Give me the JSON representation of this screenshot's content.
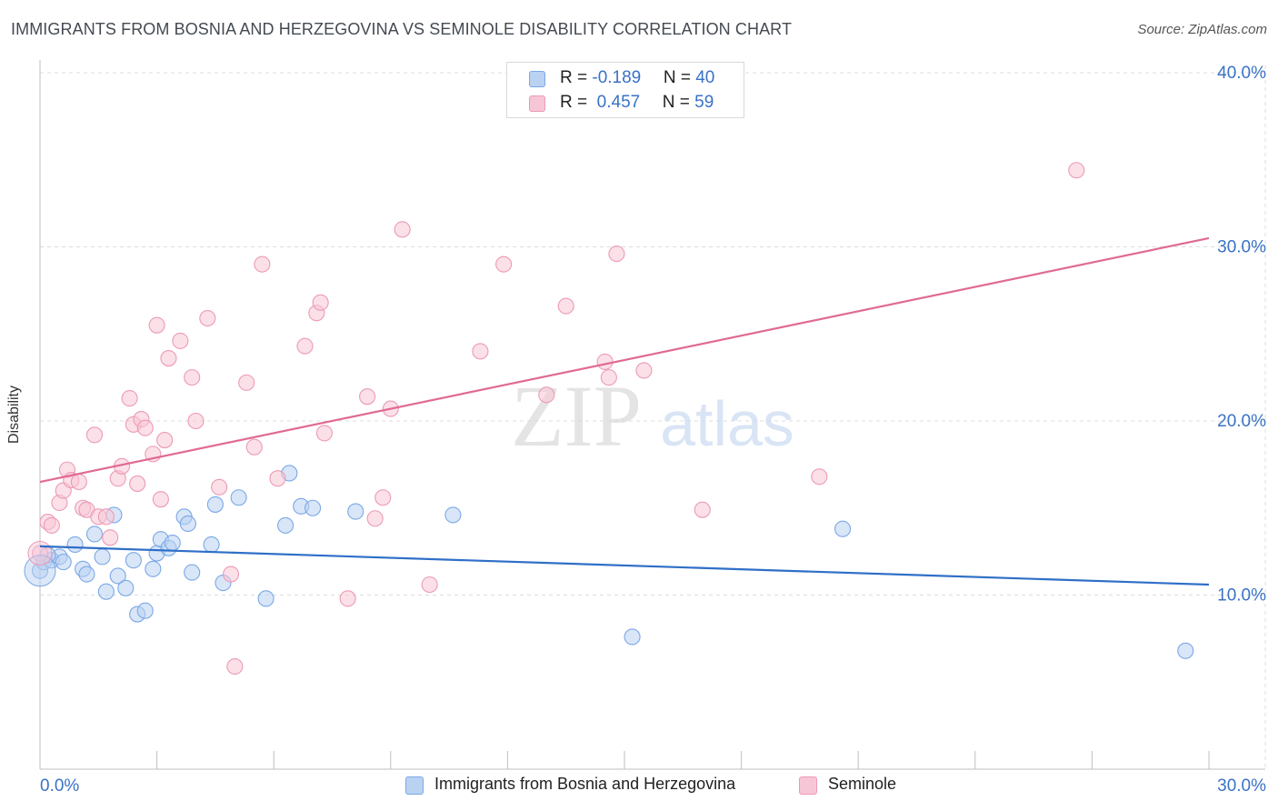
{
  "title": "IMMIGRANTS FROM BOSNIA AND HERZEGOVINA VS SEMINOLE DISABILITY CORRELATION CHART",
  "source": "Source: ZipAtlas.com",
  "watermark": {
    "zip": "ZIP",
    "atlas": "atlas"
  },
  "legend": {
    "rows": [
      {
        "r_label": "R = ",
        "r_value": "-0.189",
        "n_label": "N = ",
        "n_value": "40"
      },
      {
        "r_label": "R = ",
        "r_value": " 0.457",
        "n_label": "N = ",
        "n_value": "59"
      }
    ]
  },
  "chart_data": {
    "type": "scatter",
    "title": "IMMIGRANTS FROM BOSNIA AND HERZEGOVINA VS SEMINOLE DISABILITY CORRELATION CHART",
    "xlabel": "",
    "ylabel": "Disability",
    "xlim": [
      0,
      30
    ],
    "ylim": [
      0,
      40
    ],
    "x_tick_labels": [
      "0.0%",
      "30.0%"
    ],
    "y_tick_labels": [
      "10.0%",
      "20.0%",
      "30.0%",
      "40.0%"
    ],
    "y_ticks": [
      10,
      20,
      30,
      40
    ],
    "grid": true,
    "legend_position": "top-center",
    "series": [
      {
        "name": "Immigrants from Bosnia and Herzegovina",
        "color": "#7aa8e6",
        "fill": "#b9d2f2",
        "line_color": "#2f6fc7",
        "r": -0.189,
        "n": 40,
        "trend": [
          [
            0,
            12.8
          ],
          [
            30,
            10.6
          ]
        ],
        "points": [
          [
            0.0,
            11.4
          ],
          [
            0.1,
            11.9
          ],
          [
            0.3,
            12.0
          ],
          [
            0.5,
            12.2
          ],
          [
            0.6,
            11.9
          ],
          [
            0.9,
            12.9
          ],
          [
            1.1,
            11.5
          ],
          [
            1.2,
            11.2
          ],
          [
            1.4,
            13.5
          ],
          [
            1.6,
            12.2
          ],
          [
            1.7,
            10.2
          ],
          [
            1.9,
            14.6
          ],
          [
            2.0,
            11.1
          ],
          [
            2.2,
            10.4
          ],
          [
            2.4,
            12.0
          ],
          [
            2.5,
            8.9
          ],
          [
            2.7,
            9.1
          ],
          [
            2.9,
            11.5
          ],
          [
            3.0,
            12.4
          ],
          [
            3.1,
            13.2
          ],
          [
            3.3,
            12.7
          ],
          [
            3.4,
            13.0
          ],
          [
            3.7,
            14.5
          ],
          [
            3.8,
            14.1
          ],
          [
            3.9,
            11.3
          ],
          [
            4.4,
            12.9
          ],
          [
            4.5,
            15.2
          ],
          [
            4.7,
            10.7
          ],
          [
            5.1,
            15.6
          ],
          [
            5.8,
            9.8
          ],
          [
            6.3,
            14.0
          ],
          [
            6.4,
            17.0
          ],
          [
            6.7,
            15.1
          ],
          [
            7.0,
            15.0
          ],
          [
            8.1,
            14.8
          ],
          [
            10.6,
            14.6
          ],
          [
            15.2,
            7.6
          ],
          [
            20.6,
            13.8
          ],
          [
            29.4,
            6.8
          ],
          [
            0.2,
            12.3
          ]
        ]
      },
      {
        "name": "Seminole",
        "color": "#ec9ab5",
        "fill": "#f7c6d6",
        "line_color": "#e06a93",
        "r": 0.457,
        "n": 59,
        "trend": [
          [
            0,
            16.5
          ],
          [
            30,
            30.5
          ]
        ],
        "points": [
          [
            0.0,
            12.4
          ],
          [
            0.2,
            14.2
          ],
          [
            0.3,
            14.0
          ],
          [
            0.5,
            15.3
          ],
          [
            0.6,
            16.0
          ],
          [
            0.7,
            17.2
          ],
          [
            0.8,
            16.6
          ],
          [
            1.0,
            16.5
          ],
          [
            1.1,
            15.0
          ],
          [
            1.2,
            14.9
          ],
          [
            1.4,
            19.2
          ],
          [
            1.5,
            14.5
          ],
          [
            1.7,
            14.5
          ],
          [
            1.8,
            13.3
          ],
          [
            2.0,
            16.7
          ],
          [
            2.1,
            17.4
          ],
          [
            2.3,
            21.3
          ],
          [
            2.4,
            19.8
          ],
          [
            2.5,
            16.4
          ],
          [
            2.6,
            20.1
          ],
          [
            2.7,
            19.6
          ],
          [
            2.9,
            18.1
          ],
          [
            3.0,
            25.5
          ],
          [
            3.1,
            15.5
          ],
          [
            3.2,
            18.9
          ],
          [
            3.3,
            23.6
          ],
          [
            3.6,
            24.6
          ],
          [
            3.9,
            22.5
          ],
          [
            4.0,
            20.0
          ],
          [
            4.3,
            25.9
          ],
          [
            4.6,
            16.2
          ],
          [
            4.9,
            11.2
          ],
          [
            5.0,
            5.9
          ],
          [
            5.3,
            22.2
          ],
          [
            5.5,
            18.5
          ],
          [
            5.7,
            29.0
          ],
          [
            6.1,
            16.7
          ],
          [
            6.8,
            24.3
          ],
          [
            7.1,
            26.2
          ],
          [
            7.2,
            26.8
          ],
          [
            7.3,
            19.3
          ],
          [
            7.9,
            9.8
          ],
          [
            8.4,
            21.4
          ],
          [
            8.6,
            14.4
          ],
          [
            8.8,
            15.6
          ],
          [
            9.0,
            20.7
          ],
          [
            9.3,
            31.0
          ],
          [
            10.0,
            10.6
          ],
          [
            11.3,
            24.0
          ],
          [
            11.9,
            29.0
          ],
          [
            13.0,
            21.5
          ],
          [
            13.5,
            26.6
          ],
          [
            14.5,
            23.4
          ],
          [
            14.6,
            22.5
          ],
          [
            14.8,
            29.6
          ],
          [
            15.5,
            22.9
          ],
          [
            17.0,
            14.9
          ],
          [
            20.0,
            16.8
          ],
          [
            26.6,
            34.4
          ]
        ]
      }
    ]
  }
}
